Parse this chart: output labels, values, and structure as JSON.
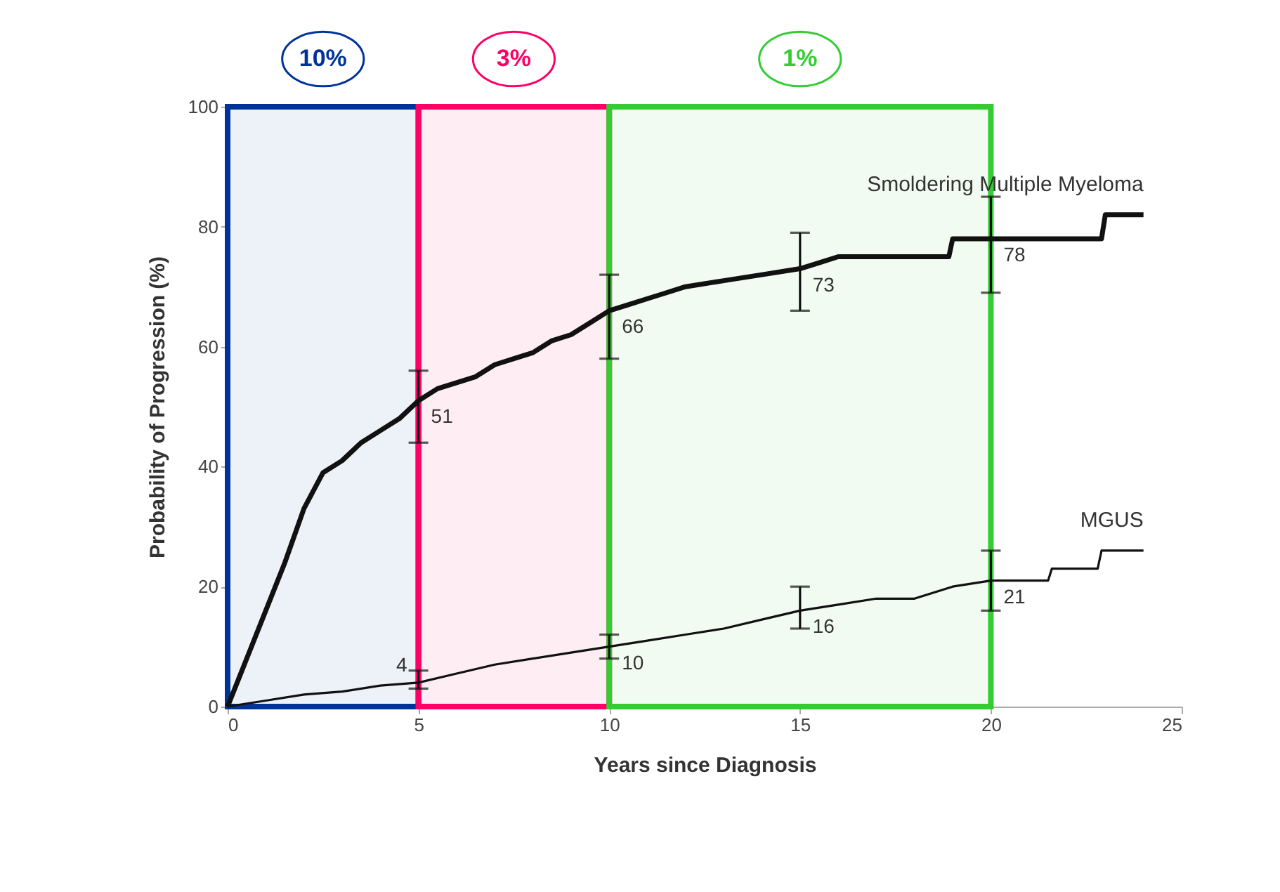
{
  "chart_data": {
    "type": "line",
    "xlabel": "Years since Diagnosis",
    "ylabel": "Probability of Progression (%)",
    "xlim": [
      0,
      25
    ],
    "ylim": [
      0,
      100
    ],
    "xticks": [
      0,
      5,
      10,
      15,
      20,
      25
    ],
    "yticks": [
      0,
      20,
      40,
      60,
      80,
      100
    ],
    "grid": false,
    "legend": false,
    "marker": "none",
    "line_style": "solid",
    "series": [
      {
        "name": "Smoldering Multiple Myeloma",
        "color": "#111111",
        "x": [
          0,
          0.25,
          0.5,
          1,
          1.5,
          2,
          2.5,
          3,
          3.5,
          4,
          4.5,
          5,
          5.5,
          6,
          6.5,
          7,
          7.5,
          8,
          8.5,
          9,
          9.5,
          10,
          10.5,
          11,
          11.5,
          12,
          13,
          14,
          15,
          15.5,
          16,
          17,
          18.9,
          19,
          20,
          21,
          22,
          22.9,
          23,
          24
        ],
        "values": [
          0,
          4,
          8,
          16,
          24,
          33,
          39,
          41,
          44,
          46,
          48,
          51,
          53,
          54,
          55,
          57,
          58,
          59,
          61,
          62,
          64,
          66,
          67,
          68,
          69,
          70,
          71,
          72,
          73,
          74,
          75,
          75,
          75,
          78,
          78,
          78,
          78,
          78,
          82,
          82
        ],
        "errors": [
          null,
          null,
          null,
          null,
          null,
          null,
          null,
          null,
          null,
          null,
          null,
          [
            44,
            56
          ],
          null,
          null,
          null,
          null,
          null,
          null,
          null,
          null,
          null,
          [
            58,
            72
          ],
          null,
          null,
          null,
          null,
          null,
          null,
          [
            66,
            79
          ],
          null,
          null,
          null,
          null,
          null,
          [
            69,
            85
          ],
          null,
          null,
          null,
          null,
          null
        ],
        "value_labels": [
          null,
          null,
          null,
          null,
          null,
          null,
          null,
          null,
          null,
          null,
          null,
          "51",
          null,
          null,
          null,
          null,
          null,
          null,
          null,
          null,
          null,
          "66",
          null,
          null,
          null,
          null,
          null,
          null,
          "73",
          null,
          null,
          null,
          null,
          null,
          "78",
          null,
          null,
          null,
          null,
          null
        ]
      },
      {
        "name": "MGUS",
        "color": "#111111",
        "x": [
          0,
          1,
          2,
          3,
          4,
          5,
          6,
          7,
          8,
          9,
          10,
          11,
          12,
          13,
          14,
          15,
          16,
          17,
          18,
          19,
          20,
          21.5,
          21.6,
          22.8,
          22.9,
          24
        ],
        "values": [
          0,
          1,
          2,
          2.5,
          3.5,
          4,
          5.5,
          7,
          8,
          9,
          10,
          11,
          12,
          13,
          14.5,
          16,
          17,
          18,
          18,
          20,
          21,
          21,
          23,
          23,
          26,
          26
        ],
        "errors": [
          null,
          null,
          null,
          null,
          null,
          [
            3,
            6
          ],
          null,
          null,
          null,
          null,
          [
            8,
            12
          ],
          null,
          null,
          null,
          null,
          [
            13,
            20
          ],
          null,
          null,
          null,
          null,
          [
            16,
            26
          ],
          null,
          null,
          null,
          null,
          null
        ],
        "value_labels": [
          null,
          null,
          null,
          null,
          null,
          "4",
          null,
          null,
          null,
          null,
          "10",
          null,
          null,
          null,
          null,
          "16",
          null,
          null,
          null,
          null,
          "21",
          null,
          null,
          null,
          null,
          null
        ]
      }
    ],
    "bands": [
      {
        "axis": "x",
        "from": 0,
        "to": 5,
        "color": "#003399",
        "label": "10%"
      },
      {
        "axis": "x",
        "from": 5,
        "to": 10,
        "color": "#ff0066",
        "label": "3%"
      },
      {
        "axis": "x",
        "from": 10,
        "to": 20,
        "color": "#33cc33",
        "label": "1%"
      }
    ]
  }
}
